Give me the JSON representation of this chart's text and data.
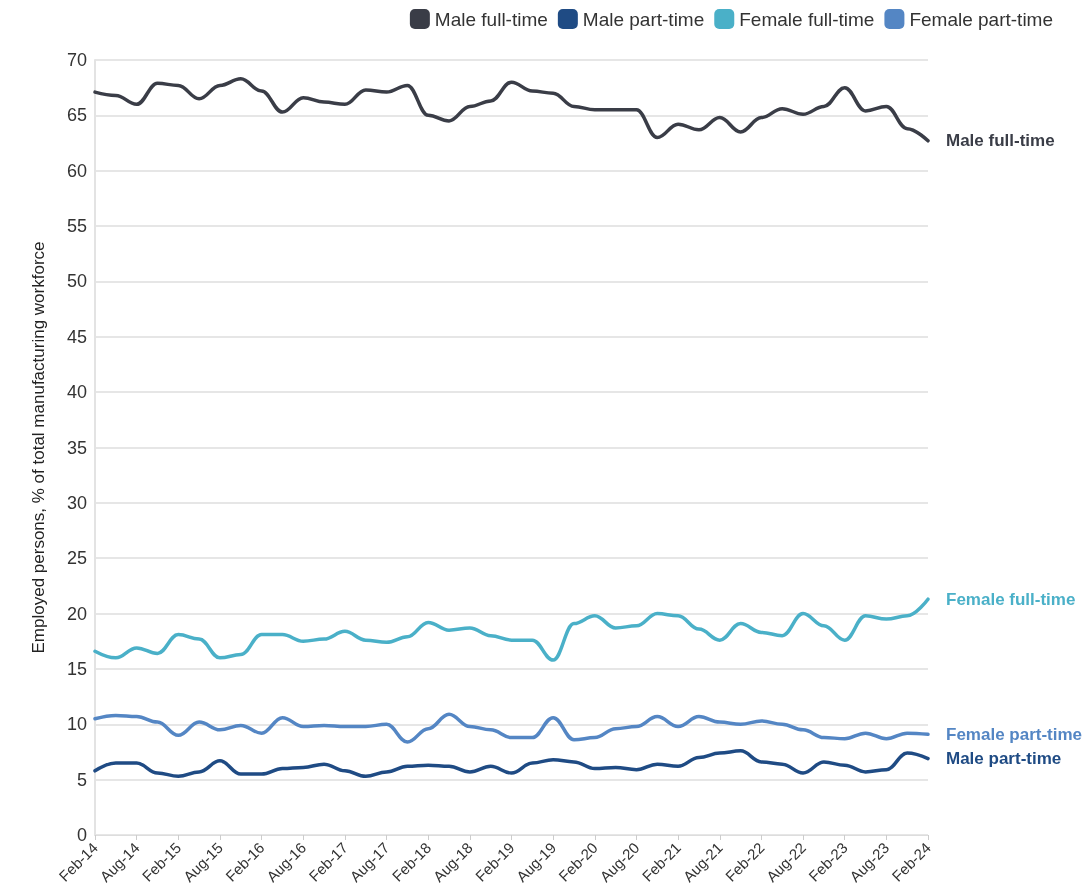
{
  "chart_data": {
    "type": "line",
    "ylabel": "Employed persons, % of total manufacturing workforce",
    "categories": [
      "Feb-14",
      null,
      "Aug-14",
      null,
      "Feb-15",
      null,
      "Aug-15",
      null,
      "Feb-16",
      null,
      "Aug-16",
      null,
      "Feb-17",
      null,
      "Aug-17",
      null,
      "Feb-18",
      null,
      "Aug-18",
      null,
      "Feb-19",
      null,
      "Aug-19",
      null,
      "Feb-20",
      null,
      "Aug-20",
      null,
      "Feb-21",
      null,
      "Aug-21",
      null,
      "Feb-22",
      null,
      "Aug-22",
      null,
      "Feb-23",
      null,
      "Aug-23",
      null,
      "Feb-24"
    ],
    "series": [
      {
        "name": "Male full-time",
        "color": "#3a3d47",
        "values": [
          67.1,
          66.8,
          66.0,
          67.9,
          67.7,
          66.5,
          67.7,
          68.3,
          67.2,
          65.3,
          66.6,
          66.2,
          66.0,
          67.3,
          67.1,
          67.7,
          65.0,
          64.5,
          65.8,
          66.3,
          68.0,
          67.2,
          67.0,
          65.8,
          65.5,
          65.5,
          65.5,
          63.0,
          64.2,
          63.7,
          64.8,
          63.5,
          64.8,
          65.6,
          65.1,
          65.8,
          67.5,
          65.4,
          65.8,
          63.8,
          62.7
        ]
      },
      {
        "name": "Male part-time",
        "color": "#1f4b84",
        "values": [
          5.8,
          6.5,
          6.5,
          5.6,
          5.3,
          5.7,
          6.7,
          5.5,
          5.5,
          6.0,
          6.1,
          6.4,
          5.8,
          5.3,
          5.7,
          6.2,
          6.3,
          6.2,
          5.7,
          6.2,
          5.6,
          6.5,
          6.8,
          6.6,
          6.0,
          6.1,
          5.9,
          6.4,
          6.2,
          7.0,
          7.4,
          7.6,
          6.6,
          6.4,
          5.6,
          6.6,
          6.3,
          5.7,
          5.9,
          7.4,
          6.9
        ]
      },
      {
        "name": "Female full-time",
        "color": "#4ab0c8",
        "values": [
          16.6,
          16.0,
          16.9,
          16.4,
          18.1,
          17.7,
          16.0,
          16.3,
          18.1,
          18.1,
          17.5,
          17.7,
          18.4,
          17.6,
          17.4,
          17.9,
          19.2,
          18.5,
          18.7,
          18.0,
          17.6,
          17.6,
          15.8,
          19.1,
          19.8,
          18.7,
          18.9,
          20.0,
          19.8,
          18.6,
          17.6,
          19.1,
          18.3,
          18.0,
          20.0,
          18.9,
          17.6,
          19.8,
          19.5,
          19.8,
          21.3
        ]
      },
      {
        "name": "Female part-time",
        "color": "#5486c4",
        "values": [
          10.5,
          10.8,
          10.7,
          10.2,
          9.0,
          10.2,
          9.5,
          9.9,
          9.2,
          10.6,
          9.8,
          9.9,
          9.8,
          9.8,
          10.0,
          8.4,
          9.6,
          10.9,
          9.8,
          9.5,
          8.8,
          8.8,
          10.6,
          8.6,
          8.8,
          9.6,
          9.8,
          10.7,
          9.8,
          10.7,
          10.2,
          10.0,
          10.3,
          10.0,
          9.5,
          8.8,
          8.7,
          9.2,
          8.7,
          9.2,
          9.1
        ]
      }
    ],
    "ylim": [
      0,
      70
    ],
    "yticks": [
      0,
      5,
      10,
      15,
      20,
      25,
      30,
      35,
      40,
      45,
      50,
      55,
      60,
      65,
      70
    ],
    "grid": "y",
    "legend": "top right",
    "marker": "none",
    "line_style": "solid"
  }
}
